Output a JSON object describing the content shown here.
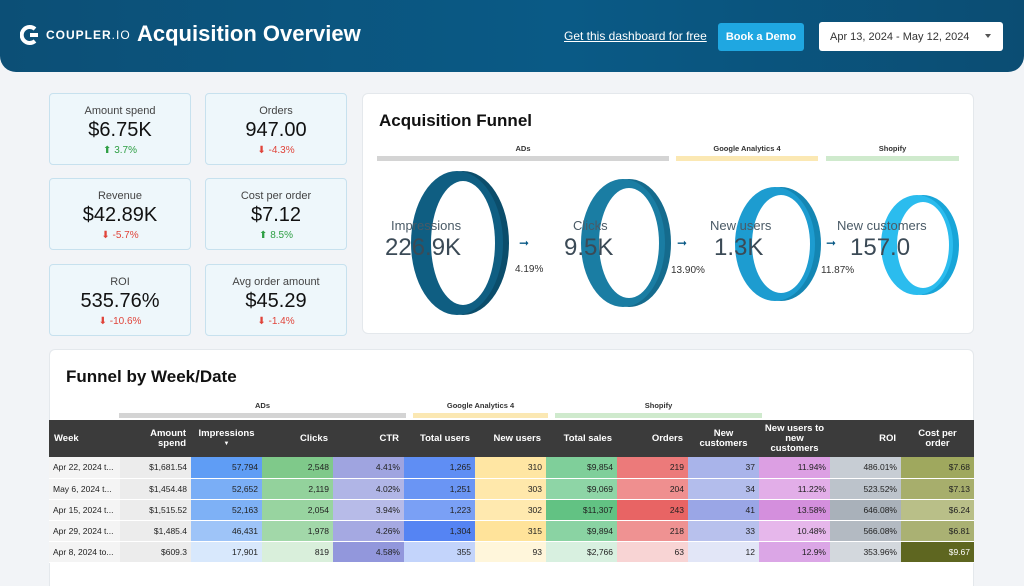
{
  "header": {
    "logo_text": "COUPLER",
    "logo_suffix": ".IO",
    "title": "Acquisition Overview",
    "free_link": "Get this dashboard for free",
    "demo_button": "Book a Demo",
    "date_range": "Apr 13, 2024 - May 12, 2024"
  },
  "kpis": [
    {
      "label": "Amount spend",
      "value": "$6.75K",
      "change": "3.7%",
      "direction": "up"
    },
    {
      "label": "Orders",
      "value": "947.00",
      "change": "-4.3%",
      "direction": "down"
    },
    {
      "label": "Revenue",
      "value": "$42.89K",
      "change": "-5.7%",
      "direction": "down"
    },
    {
      "label": "Cost per order",
      "value": "$7.12",
      "change": "8.5%",
      "direction": "up"
    },
    {
      "label": "ROI",
      "value": "535.76%",
      "change": "-10.6%",
      "direction": "down"
    },
    {
      "label": "Avg order amount",
      "value": "$45.29",
      "change": "-1.4%",
      "direction": "down"
    }
  ],
  "funnel": {
    "title": "Acquisition Funnel",
    "groups": [
      "ADs",
      "Google Analytics 4",
      "Shopify"
    ],
    "stages": [
      {
        "label": "Impressions",
        "value": "226.9K"
      },
      {
        "label": "Clicks",
        "value": "9.5K"
      },
      {
        "label": "New users",
        "value": "1.3K"
      },
      {
        "label": "New customers",
        "value": "157.0"
      }
    ],
    "conversions": [
      "4.19%",
      "13.90%",
      "11.87%"
    ],
    "arrow": "➞"
  },
  "weekly": {
    "title": "Funnel by Week/Date",
    "groups": [
      "ADs",
      "Google Analytics 4",
      "Shopify"
    ],
    "sort_glyph": "▼",
    "columns": [
      "Week",
      "Amount spend",
      "Impressions",
      "Clicks",
      "CTR",
      "Total users",
      "New users",
      "Total sales",
      "Orders",
      "New customers",
      "New users to new customers",
      "ROI",
      "Cost per order"
    ],
    "rows": [
      [
        "Apr 22, 2024 t...",
        "$1,681.54",
        "57,794",
        "2,548",
        "4.41%",
        "1,265",
        "310",
        "$9,854",
        "219",
        "37",
        "11.94%",
        "486.01%",
        "$7.68"
      ],
      [
        "May 6, 2024 t...",
        "$1,454.48",
        "52,652",
        "2,119",
        "4.02%",
        "1,251",
        "303",
        "$9,069",
        "204",
        "34",
        "11.22%",
        "523.52%",
        "$7.13"
      ],
      [
        "Apr 15, 2024 t...",
        "$1,515.52",
        "52,163",
        "2,054",
        "3.94%",
        "1,223",
        "302",
        "$11,307",
        "243",
        "41",
        "13.58%",
        "646.08%",
        "$6.24"
      ],
      [
        "Apr 29, 2024 t...",
        "$1,485.4",
        "46,431",
        "1,978",
        "4.26%",
        "1,304",
        "315",
        "$9,894",
        "218",
        "33",
        "10.48%",
        "566.08%",
        "$6.81"
      ],
      [
        "Apr 8, 2024 to...",
        "$609.3",
        "17,901",
        "819",
        "4.58%",
        "355",
        "93",
        "$2,766",
        "63",
        "12",
        "12.9%",
        "353.96%",
        "$9.67"
      ]
    ],
    "cell_colors": [
      [
        "",
        "",
        "#5f9df5",
        "#7fc98a",
        "#9fa4e0",
        "#5f8ef4",
        "#ffe6a3",
        "#7fcf9a",
        "#ec7a7a",
        "#a9b4ea",
        "#dc9fe3",
        "#c7cdd4",
        "#9fa85e"
      ],
      [
        "",
        "",
        "#7aaef6",
        "#93d29c",
        "#b0b5e6",
        "#6a95f4",
        "#ffe8ab",
        "#8ed5a6",
        "#ef8f8f",
        "#b3bdec",
        "#e2aee8",
        "#bcc3cb",
        "#a7ae6c"
      ],
      [
        "",
        "",
        "#7eb1f6",
        "#98d4a0",
        "#b7bbe8",
        "#7aa0f5",
        "#ffe9af",
        "#62c283",
        "#e86464",
        "#9aa6e6",
        "#d48fdd",
        "#a9b1ba",
        "#b9bf88"
      ],
      [
        "",
        "",
        "#9ec4f8",
        "#a2d8a9",
        "#a5a9e2",
        "#5584f3",
        "#ffe39a",
        "#8ad3a3",
        "#ef9292",
        "#b8c1ed",
        "#e6b7eb",
        "#b3bac2",
        "#aab173"
      ],
      [
        "",
        "",
        "#d8e8fc",
        "#d9efdb",
        "#9297dc",
        "#c3d4fb",
        "#fff6db",
        "#d8f0e0",
        "#f8d4d4",
        "#e2e6f7",
        "#dba6e6",
        "#d3d8dd",
        "#5e6620"
      ]
    ]
  }
}
